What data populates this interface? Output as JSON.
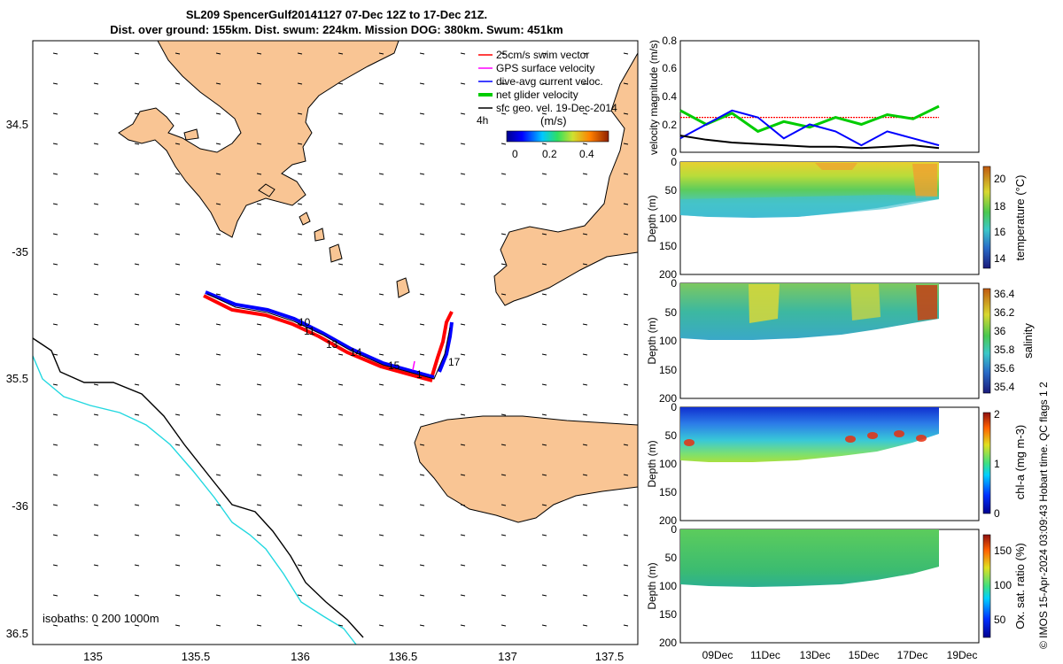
{
  "header": {
    "line1": "SL209 SpencerGulf20141127 07-Dec 12Z to 17-Dec 21Z.",
    "line2": "Dist. over ground: 155km. Dist. swum: 224km. Mission DOG: 380km. Swum: 451km"
  },
  "map": {
    "legend": [
      {
        "label": "25cm/s swim vector",
        "color": "#ff0000"
      },
      {
        "label": "GPS surface velocity",
        "color": "#ff00ff"
      },
      {
        "label": "dive-avg current veloc.",
        "color": "#0000ff"
      },
      {
        "label": "net glider velocity",
        "color": "#00cc00"
      },
      {
        "label": "sfc geo. vel. 19-Dec-2014",
        "color": "#000000"
      }
    ],
    "colorbar_label": "(m/s)",
    "colorbar_ticks": [
      "0",
      "0.2",
      "0.4"
    ],
    "time_label": "4h",
    "isobath_label": "isobaths: 0   200  1000m",
    "day_labels": [
      "10",
      "11",
      "13",
      "14",
      "15",
      "1",
      "17"
    ],
    "lon_ticks": [
      "135",
      "135.5",
      "136",
      "136.5",
      "137",
      "137.5"
    ],
    "lat_ticks": [
      "34.5",
      "-35",
      "35.5",
      "-36",
      "36.5"
    ]
  },
  "chart_data": [
    {
      "type": "line",
      "title": "velocity magnitude",
      "ylabel": "velocity magnitude (m/s)",
      "ylim": [
        0,
        0.8
      ],
      "yticks": [
        "0",
        "0.2",
        "0.4",
        "0.6",
        "0.8"
      ],
      "series": [
        {
          "name": "swim (25cm/s ref)",
          "color": "#ff0000",
          "values": [
            0.25,
            0.25,
            0.25,
            0.25,
            0.25,
            0.25,
            0.25,
            0.25,
            0.25,
            0.25,
            0.25
          ]
        },
        {
          "name": "net glider velocity",
          "color": "#00cc00",
          "values": [
            0.3,
            0.2,
            0.28,
            0.15,
            0.22,
            0.18,
            0.25,
            0.2,
            0.27,
            0.24,
            0.33
          ]
        },
        {
          "name": "dive-avg current veloc.",
          "color": "#0000ff",
          "values": [
            0.1,
            0.2,
            0.3,
            0.25,
            0.1,
            0.2,
            0.15,
            0.05,
            0.15,
            0.1,
            0.05
          ]
        },
        {
          "name": "sfc geo. vel.",
          "color": "#000000",
          "values": [
            0.12,
            0.09,
            0.07,
            0.06,
            0.05,
            0.04,
            0.04,
            0.03,
            0.04,
            0.05,
            0.03
          ]
        }
      ]
    },
    {
      "type": "heatmap",
      "variable": "temperature",
      "colorbar_label": "temperature (°C)",
      "clim": [
        13,
        21
      ],
      "colorbar_ticks": [
        "20",
        "18",
        "16",
        "14"
      ],
      "ylabel": "Depth (m)",
      "yticks": [
        "0",
        "50",
        "100",
        "150",
        "200"
      ],
      "ylim": [
        0,
        200
      ]
    },
    {
      "type": "heatmap",
      "variable": "salinity",
      "colorbar_label": "salinity",
      "clim": [
        35.35,
        36.45
      ],
      "colorbar_ticks": [
        "36.4",
        "36.2",
        "36",
        "35.8",
        "35.6",
        "35.4"
      ],
      "ylabel": "Depth (m)",
      "yticks": [
        "0",
        "50",
        "100",
        "150",
        "200"
      ],
      "ylim": [
        0,
        200
      ]
    },
    {
      "type": "heatmap",
      "variable": "chl-a",
      "colorbar_label": "chl-a (mg m-3)",
      "clim": [
        0,
        2
      ],
      "colorbar_ticks": [
        "2",
        "1",
        "0"
      ],
      "ylabel": "Depth (m)",
      "yticks": [
        "0",
        "50",
        "100",
        "150",
        "200"
      ],
      "ylim": [
        0,
        200
      ]
    },
    {
      "type": "heatmap",
      "variable": "oxygen",
      "colorbar_label": "Ox. sat. ratio (%)",
      "clim": [
        25,
        175
      ],
      "colorbar_ticks": [
        "150",
        "100",
        "50"
      ],
      "ylabel": "Depth (m)",
      "yticks": [
        "0",
        "50",
        "100",
        "150",
        "200"
      ],
      "ylim": [
        0,
        200
      ],
      "xticks": [
        "09Dec",
        "11Dec",
        "13Dec",
        "15Dec",
        "17Dec",
        "19Dec"
      ]
    }
  ],
  "footer": {
    "stamp": "© IMOS 15-Apr-2024 03:09:43 Hobart time. QC flags 1  2"
  }
}
